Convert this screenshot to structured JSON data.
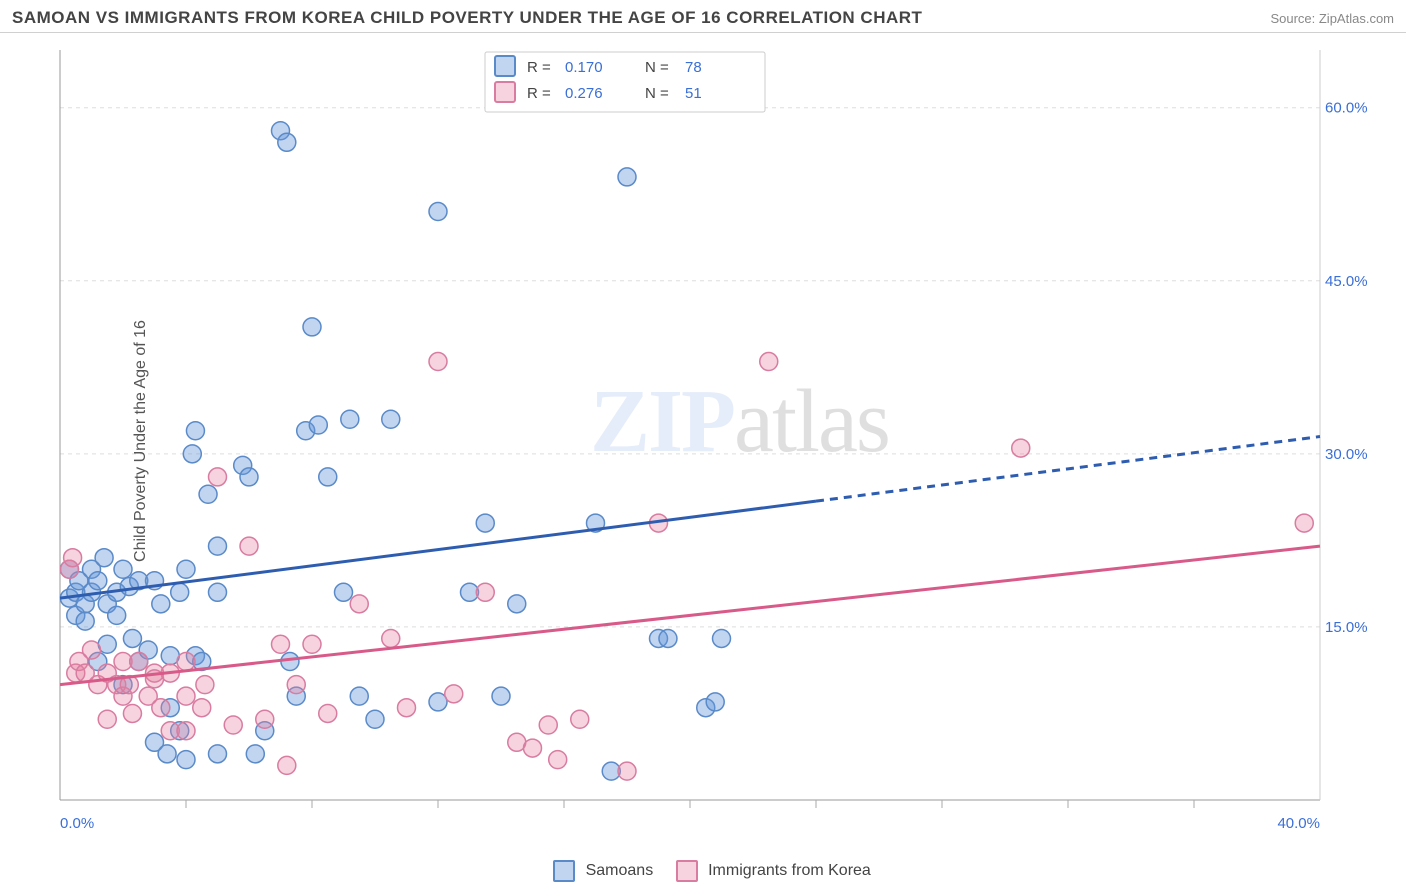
{
  "header": {
    "title": "SAMOAN VS IMMIGRANTS FROM KOREA CHILD POVERTY UNDER THE AGE OF 16 CORRELATION CHART",
    "source": "Source: ZipAtlas.com"
  },
  "ylabel": "Child Poverty Under the Age of 16",
  "watermark": {
    "zip": "ZIP",
    "atlas": "atlas"
  },
  "chart": {
    "type": "scatter",
    "xlim": [
      0,
      40
    ],
    "ylim": [
      0,
      65
    ],
    "x_ticks": [
      0,
      40
    ],
    "x_tick_labels": [
      "0.0%",
      "40.0%"
    ],
    "x_minor_ticks": [
      4,
      8,
      12,
      16,
      20,
      24,
      28,
      32,
      36
    ],
    "y_gridlines": [
      15,
      30,
      45,
      60
    ],
    "y_grid_labels": [
      "15.0%",
      "30.0%",
      "45.0%",
      "60.0%"
    ],
    "grid_color": "#dddddd",
    "background_color": "#ffffff",
    "marker_radius": 9,
    "marker_opacity": 0.45,
    "axis_label_color": "#3a6fd8",
    "series": [
      {
        "name": "Samoans",
        "color_fill": "rgba(100,150,220,0.4)",
        "color_stroke": "#5a8ac8",
        "R": "0.170",
        "N": "78",
        "trend": {
          "x1": 0,
          "y1": 17.5,
          "x2": 40,
          "y2": 31.5,
          "solid_until_x": 24
        },
        "points": [
          [
            0.3,
            17.5
          ],
          [
            0.3,
            20
          ],
          [
            0.5,
            16
          ],
          [
            0.5,
            18
          ],
          [
            0.6,
            19
          ],
          [
            0.8,
            17
          ],
          [
            0.8,
            15.5
          ],
          [
            1.0,
            18
          ],
          [
            1.0,
            20
          ],
          [
            1.2,
            19
          ],
          [
            1.2,
            12
          ],
          [
            1.4,
            21
          ],
          [
            1.5,
            17
          ],
          [
            1.5,
            13.5
          ],
          [
            1.8,
            18
          ],
          [
            1.8,
            16
          ],
          [
            2.0,
            20
          ],
          [
            2.0,
            10
          ],
          [
            2.2,
            18.5
          ],
          [
            2.3,
            14
          ],
          [
            2.5,
            19
          ],
          [
            2.5,
            12
          ],
          [
            2.8,
            13
          ],
          [
            3.0,
            19
          ],
          [
            3.0,
            5
          ],
          [
            3.2,
            17
          ],
          [
            3.4,
            4
          ],
          [
            3.5,
            8
          ],
          [
            3.5,
            12.5
          ],
          [
            3.8,
            18
          ],
          [
            3.8,
            6
          ],
          [
            4.0,
            20
          ],
          [
            4.0,
            3.5
          ],
          [
            4.2,
            30
          ],
          [
            4.3,
            12.5
          ],
          [
            4.3,
            32
          ],
          [
            4.5,
            12
          ],
          [
            4.7,
            26.5
          ],
          [
            5.0,
            18
          ],
          [
            5.0,
            4
          ],
          [
            5.0,
            22
          ],
          [
            5.8,
            29
          ],
          [
            6.0,
            28
          ],
          [
            6.2,
            4
          ],
          [
            6.5,
            6
          ],
          [
            7.0,
            58
          ],
          [
            7.2,
            57
          ],
          [
            7.3,
            12
          ],
          [
            7.5,
            9
          ],
          [
            7.8,
            32
          ],
          [
            8.0,
            41
          ],
          [
            8.2,
            32.5
          ],
          [
            8.5,
            28
          ],
          [
            9.0,
            18
          ],
          [
            9.2,
            33
          ],
          [
            9.5,
            9
          ],
          [
            10.0,
            7
          ],
          [
            10.5,
            33
          ],
          [
            12.0,
            8.5
          ],
          [
            12.0,
            51
          ],
          [
            13.0,
            18
          ],
          [
            13.5,
            24
          ],
          [
            14.0,
            9
          ],
          [
            14.5,
            17
          ],
          [
            17.0,
            24
          ],
          [
            17.5,
            2.5
          ],
          [
            18.0,
            54
          ],
          [
            19.0,
            14
          ],
          [
            19.3,
            14
          ],
          [
            20.5,
            8
          ],
          [
            20.8,
            8.5
          ],
          [
            21.0,
            14
          ]
        ]
      },
      {
        "name": "Immigrants from Korea",
        "color_fill": "rgba(230,130,160,0.35)",
        "color_stroke": "#d87ca0",
        "R": "0.276",
        "N": "51",
        "trend": {
          "x1": 0,
          "y1": 10,
          "x2": 40,
          "y2": 22,
          "solid_until_x": 40
        },
        "points": [
          [
            0.3,
            20
          ],
          [
            0.4,
            21
          ],
          [
            0.5,
            11
          ],
          [
            0.6,
            12
          ],
          [
            0.8,
            11
          ],
          [
            1.0,
            13
          ],
          [
            1.2,
            10
          ],
          [
            1.5,
            11
          ],
          [
            1.5,
            7
          ],
          [
            1.8,
            10
          ],
          [
            2.0,
            12
          ],
          [
            2.0,
            9
          ],
          [
            2.2,
            10
          ],
          [
            2.3,
            7.5
          ],
          [
            2.5,
            12
          ],
          [
            2.8,
            9
          ],
          [
            3.0,
            11
          ],
          [
            3.0,
            10.5
          ],
          [
            3.2,
            8
          ],
          [
            3.5,
            11
          ],
          [
            3.5,
            6
          ],
          [
            4.0,
            9
          ],
          [
            4.0,
            6
          ],
          [
            4.0,
            12
          ],
          [
            4.5,
            8
          ],
          [
            4.6,
            10
          ],
          [
            5.0,
            28
          ],
          [
            5.5,
            6.5
          ],
          [
            6.0,
            22
          ],
          [
            6.5,
            7
          ],
          [
            7.0,
            13.5
          ],
          [
            7.2,
            3
          ],
          [
            7.5,
            10
          ],
          [
            8.0,
            13.5
          ],
          [
            8.5,
            7.5
          ],
          [
            9.5,
            17
          ],
          [
            10.5,
            14
          ],
          [
            11.0,
            8
          ],
          [
            12.0,
            38
          ],
          [
            12.5,
            9.2
          ],
          [
            13.5,
            18
          ],
          [
            14.5,
            5
          ],
          [
            15.0,
            4.5
          ],
          [
            15.5,
            6.5
          ],
          [
            15.8,
            3.5
          ],
          [
            16.5,
            7
          ],
          [
            18.0,
            2.5
          ],
          [
            19.0,
            24
          ],
          [
            22.5,
            38
          ],
          [
            30.5,
            30.5
          ],
          [
            39.5,
            24
          ]
        ]
      }
    ]
  },
  "legend_top": {
    "rows": [
      {
        "swatch": 0,
        "r_label": "R =",
        "r_val": "0.170",
        "n_label": "N =",
        "n_val": "78"
      },
      {
        "swatch": 1,
        "r_label": "R =",
        "r_val": "0.276",
        "n_label": "N =",
        "n_val": "51"
      }
    ]
  },
  "legend_bottom": {
    "items": [
      {
        "swatch": 0,
        "label": "Samoans"
      },
      {
        "swatch": 1,
        "label": "Immigrants from Korea"
      }
    ]
  }
}
